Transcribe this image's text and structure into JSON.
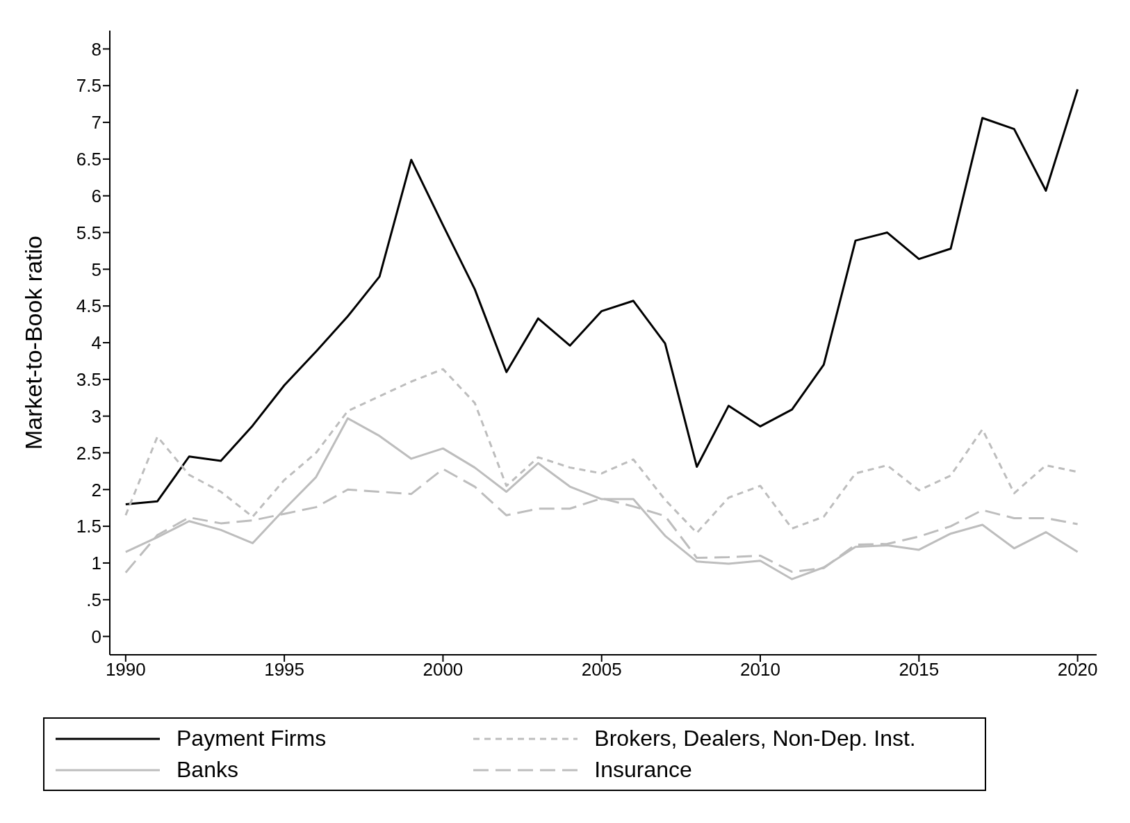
{
  "chart_data": {
    "type": "line",
    "ylabel": "Market-to-Book ratio",
    "x": [
      1990,
      1991,
      1992,
      1993,
      1994,
      1995,
      1996,
      1997,
      1998,
      1999,
      2000,
      2001,
      2002,
      2003,
      2004,
      2005,
      2006,
      2007,
      2008,
      2009,
      2010,
      2011,
      2012,
      2013,
      2014,
      2015,
      2016,
      2017,
      2018,
      2019,
      2020
    ],
    "series": [
      {
        "name": "Payment Firms",
        "color": "#000000",
        "line_style": "solid",
        "values": [
          1.8,
          1.84,
          2.45,
          2.39,
          2.87,
          3.42,
          3.88,
          4.36,
          4.9,
          6.49,
          5.6,
          4.73,
          3.6,
          4.33,
          3.96,
          4.43,
          4.57,
          3.99,
          2.31,
          3.14,
          2.86,
          3.09,
          3.7,
          5.39,
          5.5,
          5.14,
          5.28,
          7.06,
          6.91,
          6.07,
          7.45
        ]
      },
      {
        "name": "Brokers, Dealers, Non-Dep. Inst.",
        "color": "#bdbdbd",
        "line_style": "dotted",
        "values": [
          1.65,
          2.72,
          2.2,
          1.97,
          1.63,
          2.13,
          2.5,
          3.07,
          3.27,
          3.47,
          3.64,
          3.18,
          2.05,
          2.44,
          2.3,
          2.22,
          2.41,
          1.86,
          1.41,
          1.89,
          2.05,
          1.47,
          1.63,
          2.22,
          2.33,
          1.99,
          2.19,
          2.82,
          1.95,
          2.33,
          2.24
        ]
      },
      {
        "name": "Banks",
        "color": "#bdbdbd",
        "line_style": "solid",
        "values": [
          1.15,
          1.35,
          1.57,
          1.45,
          1.27,
          1.73,
          2.17,
          2.97,
          2.73,
          2.42,
          2.56,
          2.3,
          1.97,
          2.36,
          2.04,
          1.87,
          1.87,
          1.37,
          1.02,
          0.99,
          1.03,
          0.78,
          0.94,
          1.22,
          1.24,
          1.18,
          1.4,
          1.52,
          1.2,
          1.42,
          1.15
        ]
      },
      {
        "name": "Insurance",
        "color": "#bdbdbd",
        "line_style": "dashed",
        "values": [
          0.87,
          1.38,
          1.62,
          1.54,
          1.58,
          1.67,
          1.76,
          2.0,
          1.97,
          1.94,
          2.28,
          2.04,
          1.65,
          1.74,
          1.74,
          1.88,
          1.77,
          1.64,
          1.07,
          1.08,
          1.1,
          0.88,
          0.93,
          1.25,
          1.26,
          1.36,
          1.5,
          1.72,
          1.61,
          1.61,
          1.53
        ]
      }
    ],
    "xlim": [
      1989.5,
      2020.6
    ],
    "xticks": [
      1990,
      1995,
      2000,
      2005,
      2010,
      2015,
      2020
    ],
    "ylim": [
      -0.25,
      8.25
    ],
    "yticks": [
      0,
      {
        "value": 0.5,
        "label": ".5"
      },
      1,
      1.5,
      2,
      2.5,
      3,
      3.5,
      4,
      4.5,
      5,
      5.5,
      6,
      6.5,
      7,
      7.5,
      8
    ],
    "grid": false,
    "legend": "bottom",
    "marker": "none"
  }
}
